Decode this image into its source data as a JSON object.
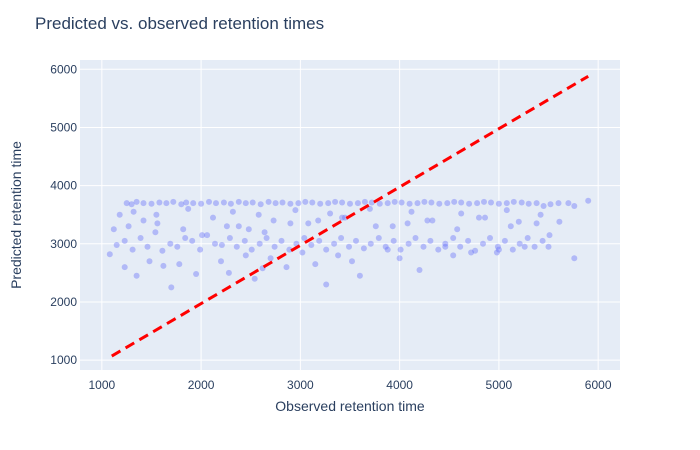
{
  "chart_data": {
    "type": "scatter",
    "title": "Predicted vs. observed retention times",
    "xlabel": "Observed retention time",
    "ylabel": "Predicted retention time",
    "xlim": [
      780,
      6220
    ],
    "ylim": [
      830,
      6160
    ],
    "xticks": [
      1000,
      2000,
      3000,
      4000,
      5000,
      6000
    ],
    "yticks": [
      1000,
      2000,
      3000,
      4000,
      5000,
      6000
    ],
    "xtick_labels": [
      "1000",
      "2000",
      "3000",
      "4000",
      "5000",
      "6000"
    ],
    "ytick_labels": [
      "1000",
      "2000",
      "3000",
      "4000",
      "5000",
      "6000"
    ],
    "grid": true,
    "legend": "none",
    "colors": {
      "plot_bg": "#e5ecf6",
      "grid": "#ffffff",
      "points": "#636efa",
      "reference_line": "#ff0000",
      "text": "#2a3f5f"
    },
    "reference_line": {
      "x": [
        1100,
        5900
      ],
      "y": [
        1070,
        5880
      ],
      "style": "dashed"
    },
    "series": [
      {
        "x": [
          1080,
          1120,
          1180,
          1250,
          1300,
          1350,
          1420,
          1500,
          1580,
          1650,
          1720,
          1800,
          1850,
          1920,
          2000,
          2080,
          2150,
          2230,
          2300,
          2380,
          2450,
          2520,
          2600,
          2680,
          2750,
          2820,
          2900,
          2980,
          3050,
          3120,
          3200,
          3280,
          3350,
          3420,
          3500,
          3580,
          3650,
          3720,
          3800,
          3880,
          3950,
          4020,
          4100,
          4180,
          4250,
          4320,
          4400,
          4480,
          4550,
          4620,
          4700,
          4780,
          4850,
          4920,
          5000,
          5080,
          5150,
          5230,
          5300,
          5380,
          5450,
          5520,
          5600,
          5700,
          5760,
          5900,
          1150,
          1230,
          1310,
          1390,
          1460,
          1540,
          1610,
          1690,
          1760,
          1840,
          1910,
          1990,
          2060,
          2140,
          2210,
          2290,
          2360,
          2440,
          2510,
          2590,
          2660,
          2740,
          2810,
          2890,
          2960,
          3040,
          3110,
          3190,
          3260,
          3340,
          3410,
          3490,
          3560,
          3640,
          3710,
          3790,
          3860,
          3940,
          4010,
          4090,
          4160,
          4240,
          4310,
          4390,
          4460,
          4540,
          4610,
          4690,
          4760,
          4840,
          4910,
          4990,
          5060,
          5140,
          5210,
          5290,
          5360,
          5440,
          5510,
          1270,
          1420,
          1560,
          1820,
          2120,
          2380,
          2640,
          2900,
          3180,
          3420,
          3760,
          4080,
          4330,
          4580,
          4860,
          5120,
          5380,
          5610,
          1350,
          1700,
          2280,
          2540,
          3260,
          3600,
          4200,
          1480,
          1780,
          2450,
          2700,
          3020,
          3380,
          3880,
          4460,
          4720,
          5000,
          5260,
          1230,
          1620,
          1950,
          2200,
          2620,
          2860,
          3150,
          3520,
          4000,
          4540,
          4980,
          5500,
          5760,
          1320,
          1550,
          1870,
          2320,
          2580,
          2950,
          3300,
          3700,
          4120,
          4620,
          5080,
          5420,
          2010,
          2260,
          2480,
          2730,
          3080,
          3450,
          3930,
          4280,
          4800,
          5200
        ],
        "y": [
          2820,
          3250,
          3500,
          3700,
          3680,
          3720,
          3700,
          3690,
          3710,
          3700,
          3720,
          3680,
          3710,
          3700,
          3690,
          3720,
          3700,
          3710,
          3690,
          3720,
          3700,
          3710,
          3680,
          3720,
          3700,
          3710,
          3690,
          3700,
          3720,
          3710,
          3690,
          3700,
          3720,
          3710,
          3690,
          3700,
          3720,
          3710,
          3690,
          3700,
          3720,
          3710,
          3690,
          3700,
          3720,
          3710,
          3690,
          3700,
          3720,
          3710,
          3690,
          3700,
          3720,
          3710,
          3690,
          3700,
          3720,
          3710,
          3690,
          3700,
          3650,
          3680,
          3700,
          3700,
          3650,
          3740,
          2980,
          3050,
          2900,
          3100,
          2950,
          3200,
          2880,
          3000,
          2950,
          3100,
          3050,
          2900,
          3150,
          3000,
          2980,
          3100,
          2950,
          3050,
          2900,
          3000,
          3100,
          2950,
          3050,
          2900,
          3000,
          3100,
          2980,
          3050,
          2900,
          3000,
          3100,
          2950,
          3050,
          2920,
          3000,
          3100,
          2950,
          3050,
          2900,
          3000,
          3100,
          2950,
          3050,
          2900,
          3000,
          3100,
          2950,
          3050,
          2880,
          3000,
          3100,
          2950,
          3050,
          2900,
          3000,
          3100,
          2950,
          3050,
          3150,
          3300,
          3400,
          3350,
          3250,
          3450,
          3300,
          3200,
          3350,
          3400,
          3450,
          3300,
          3350,
          3400,
          3250,
          3450,
          3300,
          3350,
          3380,
          2450,
          2250,
          2500,
          2400,
          2300,
          2450,
          2550,
          2700,
          2650,
          2800,
          2750,
          2850,
          2800,
          2900,
          2950,
          2850,
          2900,
          2950,
          2600,
          2620,
          2480,
          2700,
          2580,
          2600,
          2650,
          2700,
          2750,
          2800,
          2850,
          2950,
          2750,
          3550,
          3500,
          3600,
          3550,
          3500,
          3580,
          3520,
          3600,
          3550,
          3520,
          3580,
          3500,
          3150,
          3300,
          3250,
          3400,
          3350,
          3450,
          3300,
          3400,
          3450,
          3380
        ]
      }
    ]
  }
}
